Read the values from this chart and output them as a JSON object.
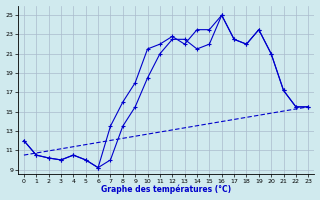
{
  "title": "Graphe des températures (°C)",
  "bg_color": "#d0eaee",
  "grid_color": "#aabccc",
  "line_color": "#0000cc",
  "xlim": [
    -0.5,
    23.5
  ],
  "ylim": [
    8.5,
    26.0
  ],
  "xticks": [
    0,
    1,
    2,
    3,
    4,
    5,
    6,
    7,
    8,
    9,
    10,
    11,
    12,
    13,
    14,
    15,
    16,
    17,
    18,
    19,
    20,
    21,
    22,
    23
  ],
  "yticks": [
    9,
    11,
    13,
    15,
    17,
    19,
    21,
    23,
    25
  ],
  "line1_x": [
    0,
    1,
    2,
    3,
    4,
    5,
    6,
    7,
    8,
    9,
    10,
    11,
    12,
    13,
    14,
    15,
    16,
    17,
    18,
    19,
    20,
    21,
    22,
    23
  ],
  "line1_y": [
    12.0,
    10.5,
    10.2,
    10.0,
    10.5,
    10.0,
    9.2,
    10.0,
    13.5,
    15.5,
    18.5,
    21.0,
    22.5,
    22.5,
    21.5,
    22.0,
    25.0,
    22.5,
    22.0,
    23.5,
    21.0,
    17.2,
    15.5,
    15.5
  ],
  "line2_x": [
    0,
    1,
    2,
    3,
    4,
    5,
    6,
    7,
    8,
    9,
    10,
    11,
    12,
    13,
    14,
    15,
    16,
    17,
    18,
    19,
    20,
    21,
    22,
    23
  ],
  "line2_y": [
    12.0,
    10.5,
    10.2,
    10.0,
    10.5,
    10.0,
    9.2,
    13.5,
    16.0,
    18.0,
    21.5,
    22.0,
    22.8,
    22.0,
    23.5,
    23.5,
    25.0,
    22.5,
    22.0,
    23.5,
    21.0,
    17.2,
    15.5,
    15.5
  ],
  "line3_x": [
    0,
    23
  ],
  "line3_y": [
    10.5,
    15.5
  ]
}
